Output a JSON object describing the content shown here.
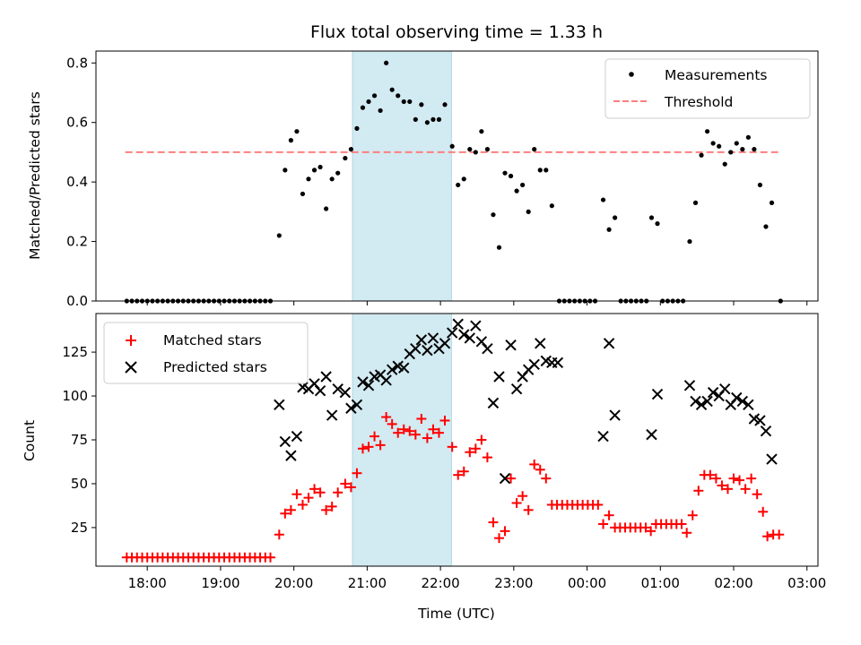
{
  "chart_data": {
    "title": "Flux total observing time = 1.33 h",
    "xlabel": "Time (UTC)",
    "xlim_hours": [
      17.3,
      27.15
    ],
    "x_ticks": [
      {
        "h": 18,
        "label": "18:00"
      },
      {
        "h": 19,
        "label": "19:00"
      },
      {
        "h": 20,
        "label": "20:00"
      },
      {
        "h": 21,
        "label": "21:00"
      },
      {
        "h": 22,
        "label": "22:00"
      },
      {
        "h": 23,
        "label": "23:00"
      },
      {
        "h": 24,
        "label": "00:00"
      },
      {
        "h": 25,
        "label": "01:00"
      },
      {
        "h": 26,
        "label": "02:00"
      },
      {
        "h": 27,
        "label": "03:00"
      }
    ],
    "shaded_interval_hours": [
      20.8,
      22.15
    ],
    "colors": {
      "measurements": "#000000",
      "threshold": "#ff7f7f",
      "matched": "#ff0000",
      "predicted": "#000000",
      "shade": "#add8e6"
    },
    "top": {
      "type": "scatter",
      "ylabel": "Matched/Predicted stars",
      "ylim": [
        0,
        0.84
      ],
      "y_ticks": [
        {
          "v": 0,
          "label": "0.0"
        },
        {
          "v": 0.2,
          "label": "0.2"
        },
        {
          "v": 0.4,
          "label": "0.4"
        },
        {
          "v": 0.6,
          "label": "0.6"
        },
        {
          "v": 0.8,
          "label": "0.8"
        }
      ],
      "legend": {
        "position": "top-right",
        "measurements": "Measurements",
        "threshold": "Threshold"
      },
      "threshold": {
        "value": 0.5,
        "x_range": [
          17.7,
          26.65
        ]
      },
      "measurements": [
        [
          17.72,
          0
        ],
        [
          17.79,
          0
        ],
        [
          17.86,
          0
        ],
        [
          17.93,
          0
        ],
        [
          18.0,
          0
        ],
        [
          18.07,
          0
        ],
        [
          18.14,
          0
        ],
        [
          18.21,
          0
        ],
        [
          18.28,
          0
        ],
        [
          18.35,
          0
        ],
        [
          18.42,
          0
        ],
        [
          18.49,
          0
        ],
        [
          18.56,
          0
        ],
        [
          18.63,
          0
        ],
        [
          18.7,
          0
        ],
        [
          18.77,
          0
        ],
        [
          18.84,
          0
        ],
        [
          18.91,
          0
        ],
        [
          18.98,
          0
        ],
        [
          19.05,
          0
        ],
        [
          19.12,
          0
        ],
        [
          19.19,
          0
        ],
        [
          19.26,
          0
        ],
        [
          19.33,
          0
        ],
        [
          19.4,
          0
        ],
        [
          19.47,
          0
        ],
        [
          19.54,
          0
        ],
        [
          19.61,
          0
        ],
        [
          19.68,
          0
        ],
        [
          19.8,
          0.22
        ],
        [
          19.88,
          0.44
        ],
        [
          19.96,
          0.54
        ],
        [
          20.04,
          0.57
        ],
        [
          20.12,
          0.36
        ],
        [
          20.2,
          0.41
        ],
        [
          20.28,
          0.44
        ],
        [
          20.36,
          0.45
        ],
        [
          20.44,
          0.31
        ],
        [
          20.52,
          0.41
        ],
        [
          20.6,
          0.43
        ],
        [
          20.7,
          0.48
        ],
        [
          20.78,
          0.51
        ],
        [
          20.86,
          0.58
        ],
        [
          20.94,
          0.65
        ],
        [
          21.02,
          0.67
        ],
        [
          21.1,
          0.69
        ],
        [
          21.18,
          0.64
        ],
        [
          21.26,
          0.8
        ],
        [
          21.34,
          0.71
        ],
        [
          21.42,
          0.69
        ],
        [
          21.5,
          0.67
        ],
        [
          21.58,
          0.67
        ],
        [
          21.66,
          0.61
        ],
        [
          21.74,
          0.66
        ],
        [
          21.82,
          0.6
        ],
        [
          21.9,
          0.61
        ],
        [
          21.98,
          0.61
        ],
        [
          22.06,
          0.66
        ],
        [
          22.16,
          0.52
        ],
        [
          22.24,
          0.39
        ],
        [
          22.32,
          0.41
        ],
        [
          22.4,
          0.51
        ],
        [
          22.48,
          0.5
        ],
        [
          22.56,
          0.57
        ],
        [
          22.64,
          0.51
        ],
        [
          22.72,
          0.29
        ],
        [
          22.8,
          0.18
        ],
        [
          22.88,
          0.43
        ],
        [
          22.96,
          0.42
        ],
        [
          23.04,
          0.37
        ],
        [
          23.12,
          0.39
        ],
        [
          23.2,
          0.3
        ],
        [
          23.28,
          0.51
        ],
        [
          23.36,
          0.44
        ],
        [
          23.44,
          0.44
        ],
        [
          23.52,
          0.32
        ],
        [
          23.62,
          0
        ],
        [
          23.69,
          0
        ],
        [
          23.76,
          0
        ],
        [
          23.83,
          0
        ],
        [
          23.9,
          0
        ],
        [
          23.97,
          0
        ],
        [
          24.04,
          0
        ],
        [
          24.11,
          0
        ],
        [
          24.22,
          0.34
        ],
        [
          24.3,
          0.24
        ],
        [
          24.38,
          0.28
        ],
        [
          24.46,
          0
        ],
        [
          24.53,
          0
        ],
        [
          24.6,
          0
        ],
        [
          24.67,
          0
        ],
        [
          24.74,
          0
        ],
        [
          24.81,
          0
        ],
        [
          24.88,
          0.28
        ],
        [
          24.96,
          0.26
        ],
        [
          25.03,
          0
        ],
        [
          25.1,
          0
        ],
        [
          25.17,
          0
        ],
        [
          25.24,
          0
        ],
        [
          25.31,
          0
        ],
        [
          25.4,
          0.2
        ],
        [
          25.48,
          0.33
        ],
        [
          25.56,
          0.49
        ],
        [
          25.64,
          0.57
        ],
        [
          25.72,
          0.53
        ],
        [
          25.8,
          0.52
        ],
        [
          25.88,
          0.46
        ],
        [
          25.96,
          0.5
        ],
        [
          26.04,
          0.53
        ],
        [
          26.12,
          0.51
        ],
        [
          26.2,
          0.55
        ],
        [
          26.28,
          0.51
        ],
        [
          26.36,
          0.39
        ],
        [
          26.44,
          0.25
        ],
        [
          26.52,
          0.33
        ],
        [
          26.64,
          0
        ]
      ]
    },
    "bottom": {
      "type": "scatter",
      "ylabel": "Count",
      "ylim": [
        3,
        147
      ],
      "y_ticks": [
        {
          "v": 25,
          "label": "25"
        },
        {
          "v": 50,
          "label": "50"
        },
        {
          "v": 75,
          "label": "75"
        },
        {
          "v": 100,
          "label": "100"
        },
        {
          "v": 125,
          "label": "125"
        }
      ],
      "legend": {
        "position": "top-left",
        "matched": "Matched stars",
        "predicted": "Predicted stars"
      },
      "matched": [
        [
          17.72,
          8
        ],
        [
          17.79,
          8
        ],
        [
          17.86,
          8
        ],
        [
          17.93,
          8
        ],
        [
          18.0,
          8
        ],
        [
          18.07,
          8
        ],
        [
          18.14,
          8
        ],
        [
          18.21,
          8
        ],
        [
          18.28,
          8
        ],
        [
          18.35,
          8
        ],
        [
          18.42,
          8
        ],
        [
          18.49,
          8
        ],
        [
          18.56,
          8
        ],
        [
          18.63,
          8
        ],
        [
          18.7,
          8
        ],
        [
          18.77,
          8
        ],
        [
          18.84,
          8
        ],
        [
          18.91,
          8
        ],
        [
          18.98,
          8
        ],
        [
          19.05,
          8
        ],
        [
          19.12,
          8
        ],
        [
          19.19,
          8
        ],
        [
          19.26,
          8
        ],
        [
          19.33,
          8
        ],
        [
          19.4,
          8
        ],
        [
          19.47,
          8
        ],
        [
          19.54,
          8
        ],
        [
          19.61,
          8
        ],
        [
          19.68,
          8
        ],
        [
          19.8,
          21
        ],
        [
          19.88,
          33
        ],
        [
          19.96,
          35
        ],
        [
          20.04,
          44
        ],
        [
          20.12,
          38
        ],
        [
          20.2,
          42
        ],
        [
          20.28,
          47
        ],
        [
          20.36,
          45
        ],
        [
          20.44,
          35
        ],
        [
          20.52,
          37
        ],
        [
          20.6,
          45
        ],
        [
          20.7,
          50
        ],
        [
          20.78,
          48
        ],
        [
          20.86,
          56
        ],
        [
          20.94,
          70
        ],
        [
          21.02,
          71
        ],
        [
          21.1,
          77
        ],
        [
          21.18,
          72
        ],
        [
          21.26,
          88
        ],
        [
          21.34,
          84
        ],
        [
          21.42,
          79
        ],
        [
          21.5,
          81
        ],
        [
          21.58,
          80
        ],
        [
          21.66,
          78
        ],
        [
          21.74,
          87
        ],
        [
          21.82,
          76
        ],
        [
          21.9,
          81
        ],
        [
          21.98,
          79
        ],
        [
          22.06,
          86
        ],
        [
          22.16,
          71
        ],
        [
          22.24,
          55
        ],
        [
          22.32,
          57
        ],
        [
          22.4,
          68
        ],
        [
          22.48,
          70
        ],
        [
          22.56,
          75
        ],
        [
          22.64,
          65
        ],
        [
          22.72,
          28
        ],
        [
          22.8,
          19
        ],
        [
          22.88,
          23
        ],
        [
          22.96,
          53
        ],
        [
          23.04,
          39
        ],
        [
          23.12,
          43
        ],
        [
          23.2,
          35
        ],
        [
          23.28,
          61
        ],
        [
          23.36,
          58
        ],
        [
          23.44,
          53
        ],
        [
          23.52,
          38
        ],
        [
          23.59,
          38
        ],
        [
          23.66,
          38
        ],
        [
          23.73,
          38
        ],
        [
          23.8,
          38
        ],
        [
          23.87,
          38
        ],
        [
          23.94,
          38
        ],
        [
          24.01,
          38
        ],
        [
          24.08,
          38
        ],
        [
          24.15,
          38
        ],
        [
          24.22,
          27
        ],
        [
          24.3,
          32
        ],
        [
          24.38,
          25
        ],
        [
          24.45,
          25
        ],
        [
          24.52,
          25
        ],
        [
          24.59,
          25
        ],
        [
          24.66,
          25
        ],
        [
          24.73,
          25
        ],
        [
          24.8,
          25
        ],
        [
          24.87,
          23
        ],
        [
          24.94,
          27
        ],
        [
          25.01,
          27
        ],
        [
          25.08,
          27
        ],
        [
          25.15,
          27
        ],
        [
          25.22,
          27
        ],
        [
          25.29,
          27
        ],
        [
          25.36,
          22
        ],
        [
          25.44,
          32
        ],
        [
          25.52,
          46
        ],
        [
          25.6,
          55
        ],
        [
          25.68,
          55
        ],
        [
          25.76,
          53
        ],
        [
          25.84,
          49
        ],
        [
          25.92,
          47
        ],
        [
          26.0,
          53
        ],
        [
          26.08,
          52
        ],
        [
          26.16,
          47
        ],
        [
          26.24,
          53
        ],
        [
          26.32,
          44
        ],
        [
          26.4,
          34
        ],
        [
          26.46,
          20
        ],
        [
          26.54,
          21
        ],
        [
          26.62,
          21
        ]
      ],
      "predicted": [
        [
          19.8,
          95
        ],
        [
          19.88,
          74
        ],
        [
          19.96,
          66
        ],
        [
          20.04,
          77
        ],
        [
          20.12,
          105
        ],
        [
          20.2,
          104
        ],
        [
          20.28,
          107
        ],
        [
          20.36,
          103
        ],
        [
          20.44,
          111
        ],
        [
          20.52,
          89
        ],
        [
          20.6,
          104
        ],
        [
          20.7,
          102
        ],
        [
          20.78,
          93
        ],
        [
          20.86,
          95
        ],
        [
          20.94,
          108
        ],
        [
          21.02,
          106
        ],
        [
          21.1,
          111
        ],
        [
          21.18,
          112
        ],
        [
          21.26,
          109
        ],
        [
          21.34,
          115
        ],
        [
          21.42,
          117
        ],
        [
          21.5,
          116
        ],
        [
          21.58,
          124
        ],
        [
          21.66,
          127
        ],
        [
          21.74,
          132
        ],
        [
          21.82,
          126
        ],
        [
          21.9,
          133
        ],
        [
          21.98,
          127
        ],
        [
          22.06,
          130
        ],
        [
          22.16,
          136
        ],
        [
          22.24,
          141
        ],
        [
          22.32,
          135
        ],
        [
          22.4,
          133
        ],
        [
          22.48,
          140
        ],
        [
          22.56,
          131
        ],
        [
          22.64,
          127
        ],
        [
          22.72,
          96
        ],
        [
          22.8,
          111
        ],
        [
          22.88,
          53
        ],
        [
          22.96,
          129
        ],
        [
          23.04,
          104
        ],
        [
          23.12,
          111
        ],
        [
          23.2,
          115
        ],
        [
          23.28,
          118
        ],
        [
          23.36,
          130
        ],
        [
          23.44,
          120
        ],
        [
          23.52,
          119
        ],
        [
          23.6,
          119
        ],
        [
          24.22,
          77
        ],
        [
          24.3,
          130
        ],
        [
          24.38,
          89
        ],
        [
          24.88,
          78
        ],
        [
          24.96,
          101
        ],
        [
          25.4,
          106
        ],
        [
          25.48,
          97
        ],
        [
          25.56,
          95
        ],
        [
          25.64,
          97
        ],
        [
          25.72,
          102
        ],
        [
          25.8,
          100
        ],
        [
          25.88,
          104
        ],
        [
          25.96,
          95
        ],
        [
          26.04,
          99
        ],
        [
          26.12,
          97
        ],
        [
          26.2,
          95
        ],
        [
          26.28,
          87
        ],
        [
          26.36,
          86
        ],
        [
          26.44,
          80
        ],
        [
          26.52,
          64
        ]
      ]
    }
  }
}
